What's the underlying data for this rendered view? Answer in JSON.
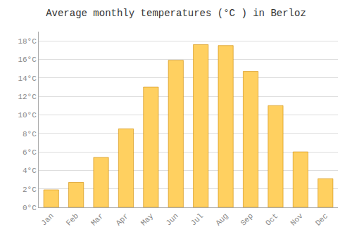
{
  "chart_data": {
    "type": "bar",
    "title": "Average monthly temperatures (°C ) in Berloz",
    "categories": [
      "Jan",
      "Feb",
      "Mar",
      "Apr",
      "May",
      "Jun",
      "Jul",
      "Aug",
      "Sep",
      "Oct",
      "Nov",
      "Dec"
    ],
    "values": [
      1.9,
      2.7,
      5.4,
      8.5,
      13.0,
      15.9,
      17.6,
      17.5,
      14.7,
      11.0,
      6.0,
      3.1
    ],
    "color": "#FFD060",
    "ylim": [
      0,
      19
    ],
    "yticks": [
      {
        "value": 0,
        "label": "0°C"
      },
      {
        "value": 2,
        "label": "2°C"
      },
      {
        "value": 4,
        "label": "4°C"
      },
      {
        "value": 6,
        "label": "6°C"
      },
      {
        "value": 8,
        "label": "8°C"
      },
      {
        "value": 10,
        "label": "10°C"
      },
      {
        "value": 12,
        "label": "12°C"
      },
      {
        "value": 14,
        "label": "14°C"
      },
      {
        "value": 16,
        "label": "16°C"
      },
      {
        "value": 18,
        "label": "18°C"
      }
    ],
    "grid": true
  }
}
